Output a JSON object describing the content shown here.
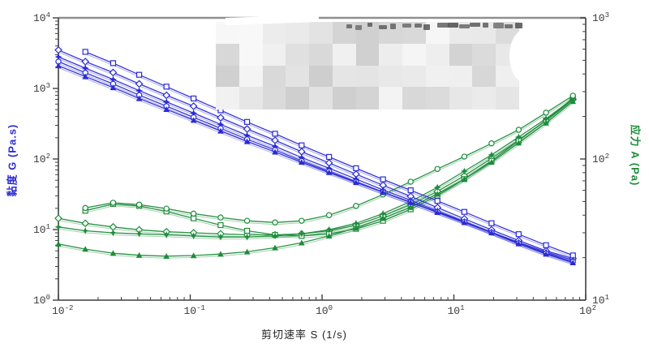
{
  "figure": {
    "background": "#ffffff",
    "frame_top_color": "#8f8f8f",
    "frame_color": "#3f3f3f",
    "redaction": {
      "type": "pixelated-mosaic-block",
      "location": "top-center legend area",
      "tile_grays": [
        "#cccccc",
        "#f1f1f1"
      ]
    }
  },
  "chart_data": {
    "type": "line",
    "x_scale": "log",
    "grid": "off",
    "legend_position": "hidden-under-censor-mosaic",
    "x_axis": {
      "label": "剪切速率 S (1/s)",
      "min": 0.01,
      "max": 100,
      "tick_exponents": [
        -2,
        -1,
        0,
        1,
        2
      ]
    },
    "y_left_axis": {
      "label": "黏度 G (Pa.s)",
      "color": "#2b2bd5",
      "min": 1,
      "max": 10000,
      "tick_exponents": [
        0,
        1,
        2,
        3,
        4
      ]
    },
    "y_right_axis": {
      "label": "应力 A (Pa)",
      "color": "#1e8c3c",
      "min": 10,
      "max": 1000,
      "tick_exponents": [
        1,
        2,
        3
      ]
    },
    "shear_rate": [
      0.01,
      0.016,
      0.026,
      0.041,
      0.066,
      0.106,
      0.17,
      0.27,
      0.44,
      0.7,
      1.13,
      1.81,
      2.9,
      4.7,
      7.5,
      12,
      19.3,
      31,
      50,
      80
    ],
    "series": [
      {
        "name": "stress-diamond",
        "group": "stress",
        "axis": "right",
        "marker": "diamond-open",
        "color": "#1e8c3c",
        "values": [
          38,
          35,
          33,
          31.5,
          30.5,
          30,
          29.5,
          29,
          29,
          29.5,
          31,
          34,
          39.5,
          47.5,
          59,
          76,
          101,
          136,
          187,
          264
        ]
      },
      {
        "name": "stress-square",
        "group": "stress",
        "axis": "right",
        "marker": "square-open",
        "color": "#1e8c3c",
        "values": [
          null,
          43,
          48,
          46.5,
          42.5,
          38,
          34,
          31,
          29,
          28.5,
          29.5,
          32,
          36.5,
          44,
          55,
          72,
          97,
          135,
          188,
          270
        ]
      },
      {
        "name": "stress-star",
        "group": "stress",
        "axis": "right",
        "marker": "star-filled",
        "color": "#1e8c3c",
        "values": [
          33,
          31,
          30,
          29.5,
          29,
          28.5,
          28,
          28,
          28.5,
          29.5,
          31.5,
          35,
          41,
          50,
          63,
          82,
          107,
          143,
          193,
          267
        ]
      },
      {
        "name": "stress-circle",
        "group": "stress",
        "axis": "right",
        "marker": "circle-open",
        "color": "#1e8c3c",
        "values": [
          null,
          45,
          49,
          47.5,
          44.5,
          41,
          38.5,
          36.5,
          35.5,
          36.5,
          40,
          46.5,
          56,
          69,
          85,
          104,
          129,
          161,
          213,
          281
        ]
      },
      {
        "name": "stress-triangle",
        "group": "stress",
        "axis": "right",
        "marker": "triangle-filled",
        "color": "#1e8c3c",
        "values": [
          25,
          23,
          21.5,
          20.8,
          20.5,
          20.7,
          21.2,
          22,
          23.5,
          25.5,
          28.5,
          32.5,
          38,
          45.5,
          56.5,
          72,
          95,
          130,
          180,
          256
        ]
      },
      {
        "name": "viscosity-diamond",
        "group": "viscosity",
        "axis": "left",
        "marker": "diamond-open",
        "color": "#2b2bd5",
        "values": [
          3500,
          2400,
          1680,
          1160,
          800,
          560,
          385,
          266,
          184,
          127,
          88,
          61,
          42.5,
          29.5,
          20.5,
          14.2,
          9.9,
          7.0,
          5.0,
          3.9
        ]
      },
      {
        "name": "viscosity-square",
        "group": "viscosity",
        "axis": "left",
        "marker": "square-open",
        "color": "#2b2bd5",
        "values": [
          null,
          3300,
          2280,
          1560,
          1060,
          720,
          490,
          335,
          228,
          156,
          107,
          74,
          51.5,
          36,
          25.5,
          17.8,
          12.3,
          8.6,
          6.0,
          4.3
        ]
      },
      {
        "name": "viscosity-star",
        "group": "viscosity",
        "axis": "left",
        "marker": "star-filled",
        "color": "#2b2bd5",
        "values": [
          2800,
          1940,
          1340,
          930,
          645,
          447,
          310,
          216,
          151,
          105,
          74,
          52,
          36.5,
          26,
          18.4,
          13.0,
          9.2,
          6.6,
          4.8,
          3.7
        ]
      },
      {
        "name": "viscosity-circle",
        "group": "viscosity",
        "axis": "left",
        "marker": "circle-open",
        "color": "#2b2bd5",
        "values": [
          2400,
          1670,
          1160,
          805,
          560,
          390,
          272,
          190,
          134,
          94,
          67,
          47.5,
          34,
          24.5,
          17.7,
          12.8,
          9.1,
          6.4,
          4.6,
          3.5
        ]
      },
      {
        "name": "viscosity-triangle",
        "group": "viscosity",
        "axis": "left",
        "marker": "triangle-filled",
        "color": "#2b2bd5",
        "values": [
          2100,
          1470,
          1030,
          720,
          505,
          355,
          250,
          177,
          126,
          90,
          64.5,
          46.5,
          33.7,
          24.2,
          17.5,
          12.6,
          9.0,
          6.3,
          4.5,
          3.4
        ]
      }
    ]
  }
}
